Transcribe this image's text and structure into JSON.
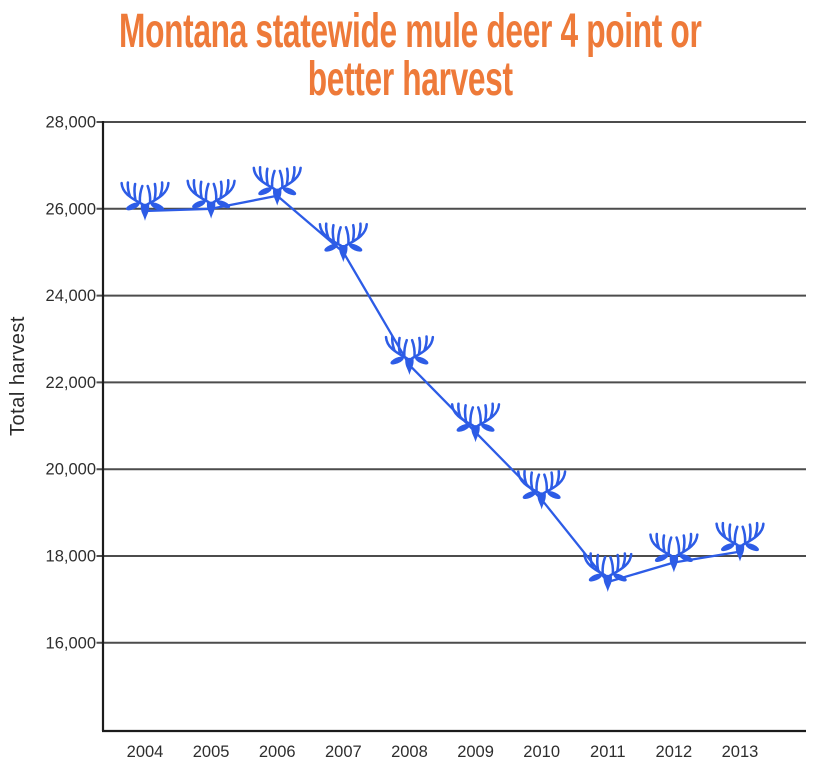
{
  "title_lines": [
    "Montana statewide mule deer 4 point or",
    "better harvest"
  ],
  "colors": {
    "title_text": "#ee7a39",
    "line": "#2d5ce6",
    "marker": "#2d5ce6",
    "grid": "#4c4c4c",
    "axis": "#1c1c1c",
    "tick_text": "#2e2e2e",
    "background": "#ffffff"
  },
  "chart_data": {
    "type": "line",
    "title": "Montana statewide mule deer 4 point or better harvest",
    "xlabel": "",
    "ylabel": "Total harvest",
    "categories": [
      "2004",
      "2005",
      "2006",
      "2007",
      "2008",
      "2009",
      "2010",
      "2011",
      "2012",
      "2013"
    ],
    "values": [
      25950,
      26000,
      26300,
      25000,
      22400,
      20850,
      19300,
      17400,
      17850,
      18100
    ],
    "y_ticks": [
      28000,
      26000,
      24000,
      22000,
      20000,
      18000,
      16000
    ],
    "y_tick_labels": [
      "28,000",
      "26,000",
      "24,000",
      "22,000",
      "20,000",
      "18,000",
      "16,000"
    ],
    "ylim": [
      13900,
      28000
    ],
    "grid": true,
    "legend": "none",
    "marker": "deer-head-icon",
    "marker_description": "blue mule deer buck head silhouette with antlers at each data point"
  }
}
